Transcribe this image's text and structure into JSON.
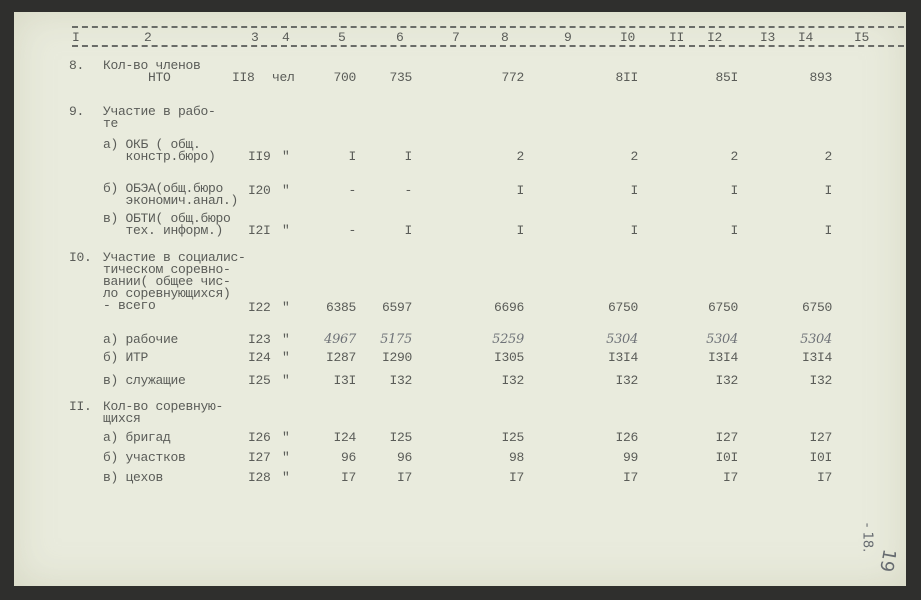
{
  "header_columns": [
    "I",
    "2",
    "3",
    "4",
    "5",
    "6",
    "7",
    "8",
    "9",
    "I0",
    "II",
    "I2",
    "I3",
    "I4",
    "I5"
  ],
  "rows": [
    {
      "num": "8.",
      "label": [
        "Кол-во членов",
        "      НТО"
      ],
      "code": "II8",
      "unit": "чел",
      "values": {
        "c5": "700",
        "c6": "735",
        "c8": "772",
        "c10": "8II",
        "c12": "85I",
        "c14": "893"
      }
    },
    {
      "num": "9.",
      "label": [
        "Участие в рабо-",
        "те"
      ]
    },
    {
      "label": [
        "а) ОКБ ( общ.",
        "   констр.бюро)"
      ],
      "code": "II9",
      "unit": "\"",
      "values": {
        "c5": "I",
        "c6": "I",
        "c8": "2",
        "c10": "2",
        "c12": "2",
        "c14": "2"
      }
    },
    {
      "label": [
        "б) ОБЭА(общ.бюро",
        "   экономич.анал.)"
      ],
      "code": "I20",
      "unit": "\"",
      "values": {
        "c5": "-",
        "c6": "-",
        "c8": "I",
        "c10": "I",
        "c12": "I",
        "c14": "I"
      }
    },
    {
      "label": [
        "в) ОБТИ( общ.бюро",
        "   тех. информ.)"
      ],
      "code": "I2I",
      "unit": "\"",
      "values": {
        "c5": "-",
        "c6": "I",
        "c8": "I",
        "c10": "I",
        "c12": "I",
        "c14": "I"
      }
    },
    {
      "num": "I0.",
      "label": [
        "Участие в социалис-",
        "тическом соревно-",
        "вании( общее чис-",
        "ло соревнующихся)",
        "- всего"
      ],
      "code": "I22",
      "unit": "\"",
      "values": {
        "c5": "6385",
        "c6": "6597",
        "c8": "6696",
        "c10": "6750",
        "c12": "6750",
        "c14": "6750"
      }
    },
    {
      "label": [
        "а) рабочие"
      ],
      "code": "I23",
      "unit": "\"",
      "handwritten": true,
      "values": {
        "c5": "4967",
        "c6": "5175",
        "c8": "5259",
        "c10": "5304",
        "c12": "5304",
        "c14": "5304"
      }
    },
    {
      "label": [
        "б) ИТР"
      ],
      "code": "I24",
      "unit": "\"",
      "values": {
        "c5": "I287",
        "c6": "I290",
        "c8": "I305",
        "c10": "I3I4",
        "c12": "I3I4",
        "c14": "I3I4"
      }
    },
    {
      "label": [
        "в) служащие"
      ],
      "code": "I25",
      "unit": "\"",
      "values": {
        "c5": "I3I",
        "c6": "I32",
        "c8": "I32",
        "c10": "I32",
        "c12": "I32",
        "c14": "I32"
      }
    },
    {
      "num": "II.",
      "label": [
        "Кол-во соревную-",
        "щихся"
      ]
    },
    {
      "label": [
        "а) бригад"
      ],
      "code": "I26",
      "unit": "\"",
      "values": {
        "c5": "I24",
        "c6": "I25",
        "c8": "I25",
        "c10": "I26",
        "c12": "I27",
        "c14": "I27"
      }
    },
    {
      "label": [
        "б) участков"
      ],
      "code": "I27",
      "unit": "\"",
      "values": {
        "c5": "96",
        "c6": "96",
        "c8": "98",
        "c10": "99",
        "c12": "I0I",
        "c14": "I0I"
      }
    },
    {
      "label": [
        "в) цехов"
      ],
      "code": "I28",
      "unit": "\"",
      "values": {
        "c5": "I7",
        "c6": "I7",
        "c8": "I7",
        "c10": "I7",
        "c12": "I7",
        "c14": "I7"
      }
    }
  ],
  "margin_notes": {
    "note": "- 18.",
    "page_number": "19"
  }
}
